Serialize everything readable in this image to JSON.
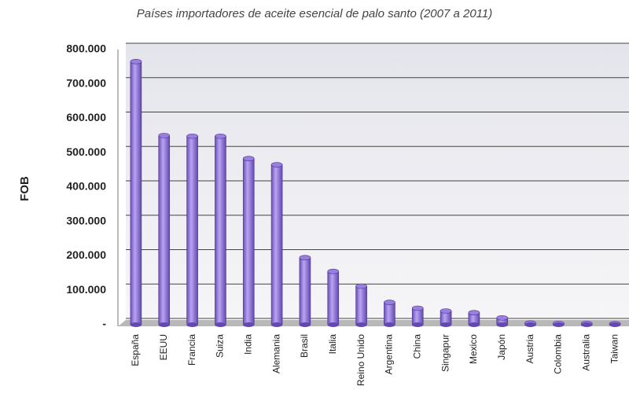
{
  "chart_data": {
    "type": "bar",
    "title": "Países importadores de aceite esencial de palo santo (2007 a 2011)",
    "y_label": "FOB",
    "categories": [
      "España",
      "EEUU",
      "Francia",
      "Suiza",
      "India",
      "Alemania",
      "Brasil",
      "Italia",
      "Reino Unido",
      "Argentina",
      "China",
      "Singapur",
      "Mexico",
      "Japón",
      "Austria",
      "Colombia",
      "Australia",
      "Taiwan"
    ],
    "values": [
      765000,
      550000,
      548000,
      548000,
      483000,
      465000,
      195000,
      155000,
      112000,
      65000,
      48000,
      40000,
      35000,
      20000,
      5000,
      4000,
      4000,
      3000
    ],
    "color": "#9b7fe0",
    "ylim": [
      0,
      800000
    ],
    "yticks": [
      {
        "value": 0,
        "label": "-"
      },
      {
        "value": 100000,
        "label": "100.000"
      },
      {
        "value": 200000,
        "label": "200.000"
      },
      {
        "value": 300000,
        "label": "300.000"
      },
      {
        "value": 400000,
        "label": "400.000"
      },
      {
        "value": 500000,
        "label": "500.000"
      },
      {
        "value": 600000,
        "label": "600.000"
      },
      {
        "value": 700000,
        "label": "700.000"
      },
      {
        "value": 800000,
        "label": "800.000"
      }
    ],
    "grid": true
  }
}
